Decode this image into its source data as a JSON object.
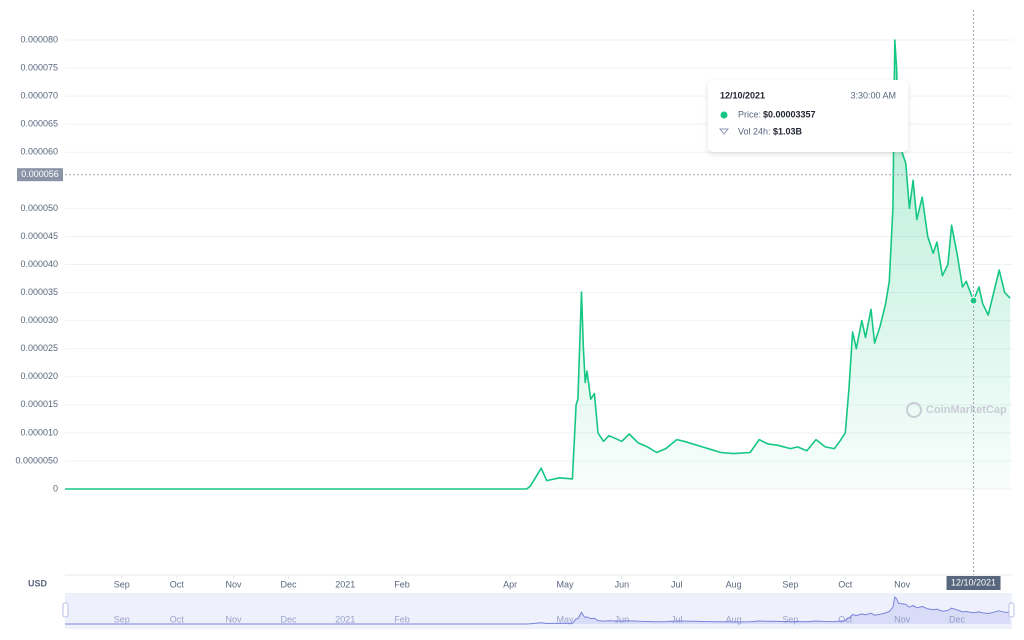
{
  "chart_data": {
    "type": "area",
    "color": "#16c784",
    "navigator_color": "#7b84dd",
    "currency": "USD",
    "watermark": "CoinMarketCap",
    "grid": true,
    "xlim": [
      "2020-08-01",
      "2021-12-31"
    ],
    "ylim": [
      0,
      8e-05
    ],
    "yticks": [
      0,
      {
        "value": 5e-06,
        "label": "0.0000050"
      },
      {
        "value": 1e-05,
        "label": "0.000010"
      },
      1.5e-05,
      {
        "value": 2e-05,
        "label": "0.000020"
      },
      2.5e-05,
      {
        "value": 3e-05,
        "label": "0.000030"
      },
      3.5e-05,
      {
        "value": 4e-05,
        "label": "0.000040"
      },
      4.5e-05,
      {
        "value": 5e-05,
        "label": "0.000050"
      },
      {
        "value": 6e-05,
        "label": "0.000060"
      },
      6.5e-05,
      {
        "value": 7e-05,
        "label": "0.000070"
      },
      7.5e-05,
      {
        "value": 8e-05,
        "label": "0.000080"
      }
    ],
    "xticks": [
      {
        "value": "2020-09-01",
        "label": "Sep"
      },
      {
        "value": "2020-10-01",
        "label": "Oct"
      },
      {
        "value": "2020-11-01",
        "label": "Nov"
      },
      {
        "value": "2020-12-01",
        "label": "Dec"
      },
      {
        "value": "2021-01-01",
        "label": "2021"
      },
      {
        "value": "2021-02-01",
        "label": "Feb"
      },
      {
        "value": "2021-04-01",
        "label": "Apr"
      },
      {
        "value": "2021-05-01",
        "label": "May"
      },
      {
        "value": "2021-06-01",
        "label": "Jun"
      },
      {
        "value": "2021-07-01",
        "label": "Jul"
      },
      {
        "value": "2021-08-01",
        "label": "Aug"
      },
      {
        "value": "2021-09-01",
        "label": "Sep"
      },
      {
        "value": "2021-10-01",
        "label": "Oct"
      },
      {
        "value": "2021-11-01",
        "label": "Nov"
      }
    ],
    "navigator_xticks": [
      {
        "value": "2020-09-01",
        "label": "Sep"
      },
      {
        "value": "2020-10-01",
        "label": "Oct"
      },
      {
        "value": "2020-11-01",
        "label": "Nov"
      },
      {
        "value": "2020-12-01",
        "label": "Dec"
      },
      {
        "value": "2021-01-01",
        "label": "2021"
      },
      {
        "value": "2021-02-01",
        "label": "Feb"
      },
      {
        "value": "2021-05-01",
        "label": "May"
      },
      {
        "value": "2021-06-01",
        "label": "Jun"
      },
      {
        "value": "2021-07-01",
        "label": "Jul"
      },
      {
        "value": "2021-08-01",
        "label": "Aug"
      },
      {
        "value": "2021-09-01",
        "label": "Sep"
      },
      {
        "value": "2021-10-01",
        "label": "Oct"
      },
      {
        "value": "2021-11-01",
        "label": "Nov"
      },
      {
        "value": "2021-12-01",
        "label": "Dec"
      }
    ],
    "x": [
      "2020-08-01",
      "2021-04-10",
      "2021-04-12",
      "2021-04-18",
      "2021-04-21",
      "2021-04-28",
      "2021-05-05",
      "2021-05-07",
      "2021-05-08",
      "2021-05-10",
      "2021-05-11",
      "2021-05-12",
      "2021-05-13",
      "2021-05-15",
      "2021-05-17",
      "2021-05-19",
      "2021-05-22",
      "2021-05-25",
      "2021-06-01",
      "2021-06-05",
      "2021-06-10",
      "2021-06-15",
      "2021-06-20",
      "2021-06-25",
      "2021-07-01",
      "2021-07-05",
      "2021-07-10",
      "2021-07-15",
      "2021-07-20",
      "2021-07-25",
      "2021-08-01",
      "2021-08-10",
      "2021-08-15",
      "2021-08-20",
      "2021-08-25",
      "2021-09-01",
      "2021-09-05",
      "2021-09-10",
      "2021-09-15",
      "2021-09-20",
      "2021-09-25",
      "2021-09-28",
      "2021-10-01",
      "2021-10-03",
      "2021-10-05",
      "2021-10-07",
      "2021-10-10",
      "2021-10-12",
      "2021-10-15",
      "2021-10-17",
      "2021-10-20",
      "2021-10-23",
      "2021-10-25",
      "2021-10-27",
      "2021-10-28",
      "2021-10-29",
      "2021-10-30",
      "2021-11-01",
      "2021-11-03",
      "2021-11-05",
      "2021-11-07",
      "2021-11-09",
      "2021-11-12",
      "2021-11-15",
      "2021-11-18",
      "2021-11-20",
      "2021-11-23",
      "2021-11-26",
      "2021-11-28",
      "2021-12-01",
      "2021-12-04",
      "2021-12-06",
      "2021-12-10",
      "2021-12-13",
      "2021-12-15",
      "2021-12-18",
      "2021-12-21",
      "2021-12-24",
      "2021-12-27",
      "2021-12-30"
    ],
    "values": [
      0,
      0,
      5e-07,
      3.7e-06,
      1.5e-06,
      2e-06,
      1.8e-06,
      1.5e-05,
      1.6e-05,
      3.51e-05,
      2.5e-05,
      1.9e-05,
      2.1e-05,
      1.6e-05,
      1.7e-05,
      1e-05,
      8.5e-06,
      9.5e-06,
      8.5e-06,
      9.8e-06,
      8.2e-06,
      7.5e-06,
      6.5e-06,
      7.2e-06,
      8.8e-06,
      8.5e-06,
      8e-06,
      7.5e-06,
      7e-06,
      6.5e-06,
      6.3e-06,
      6.5e-06,
      8.8e-06,
      8e-06,
      7.8e-06,
      7.2e-06,
      7.5e-06,
      6.8e-06,
      8.8e-06,
      7.5e-06,
      7.2e-06,
      8.5e-06,
      1e-05,
      1.8e-05,
      2.8e-05,
      2.5e-05,
      3e-05,
      2.7e-05,
      3.2e-05,
      2.6e-05,
      2.9e-05,
      3.3e-05,
      3.7e-05,
      5e-05,
      8e-05,
      7.5e-05,
      6.2e-05,
      6e-05,
      5.8e-05,
      5e-05,
      5.5e-05,
      4.8e-05,
      5.2e-05,
      4.5e-05,
      4.2e-05,
      4.4e-05,
      3.8e-05,
      4e-05,
      4.7e-05,
      4.2e-05,
      3.6e-05,
      3.7e-05,
      3.357e-05,
      3.6e-05,
      3.3e-05,
      3.1e-05,
      3.5e-05,
      3.9e-05,
      3.5e-05,
      3.4e-05
    ],
    "crosshair": {
      "x": {
        "value": "2021-12-10",
        "label": "12/10/2021"
      },
      "y": 5.6e-05,
      "point": 72
    },
    "tooltip": {
      "date": "12/10/2021",
      "time": "3:30:00 AM",
      "price_label": "Price:",
      "price": "$0.00003357",
      "volume_label": "Vol 24h:",
      "volume": "$1.03B"
    }
  }
}
